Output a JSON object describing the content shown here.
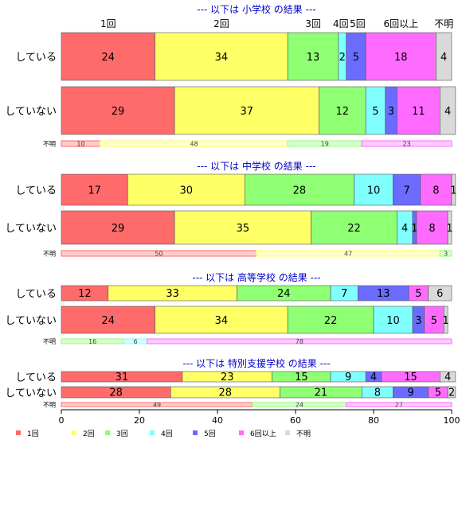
{
  "chart_data": {
    "type": "bar",
    "orientation": "horizontal",
    "stacked": true,
    "xlim": [
      0,
      100
    ],
    "x_ticks": [
      "0",
      "20",
      "40",
      "60",
      "80",
      "100"
    ],
    "legend": {
      "placement": "bottom-left",
      "entries": [
        "1回",
        "2回",
        "3回",
        "4回",
        "5回",
        "6回以上",
        "不明"
      ]
    },
    "colors": [
      "#ff6b6b",
      "#ffff66",
      "#8fff73",
      "#80ffff",
      "#6b6bff",
      "#ff6bff",
      "#d9d9d9"
    ],
    "top_labels": [
      "1回",
      "2回",
      "3回",
      "4回",
      "5回",
      "6回以上",
      "不明"
    ],
    "panels": [
      {
        "title": "--- 以下は 小学校 の結果 ---",
        "rows": [
          {
            "label": "している",
            "values": [
              24,
              34,
              13,
              2,
              5,
              18,
              4
            ],
            "kind": "main"
          },
          {
            "label": "していない",
            "values": [
              29,
              37,
              12,
              5,
              3,
              11,
              4
            ],
            "kind": "main"
          },
          {
            "label": "不明",
            "values": [
              10,
              48,
              19,
              0,
              0,
              23,
              0
            ],
            "kind": "thin"
          }
        ]
      },
      {
        "title": "--- 以下は 中学校 の結果 ---",
        "rows": [
          {
            "label": "している",
            "values": [
              17,
              30,
              28,
              10,
              7,
              8,
              1
            ],
            "kind": "main"
          },
          {
            "label": "していない",
            "values": [
              29,
              35,
              22,
              4,
              1,
              8,
              1
            ],
            "kind": "main"
          },
          {
            "label": "不明",
            "values": [
              50,
              47,
              3,
              0,
              0,
              0,
              0
            ],
            "kind": "thin"
          }
        ]
      },
      {
        "title": "--- 以下は 高等学校 の結果 ---",
        "rows": [
          {
            "label": "している",
            "values": [
              12,
              33,
              24,
              7,
              13,
              5,
              6
            ],
            "kind": "main"
          },
          {
            "label": "していない",
            "values": [
              24,
              34,
              22,
              10,
              3,
              5,
              1
            ],
            "kind": "main"
          },
          {
            "label": "不明",
            "values": [
              0,
              0,
              16,
              6,
              0,
              78,
              0
            ],
            "kind": "thin"
          }
        ]
      },
      {
        "title": "--- 以下は 特別支援学校 の結果 ---",
        "rows": [
          {
            "label": "している",
            "values": [
              31,
              23,
              15,
              9,
              4,
              15,
              4
            ],
            "kind": "main"
          },
          {
            "label": "していない",
            "values": [
              28,
              28,
              21,
              8,
              9,
              5,
              2
            ],
            "kind": "main"
          },
          {
            "label": "不明",
            "values": [
              49,
              0,
              24,
              0,
              0,
              27,
              0
            ],
            "kind": "thin"
          }
        ]
      }
    ]
  }
}
